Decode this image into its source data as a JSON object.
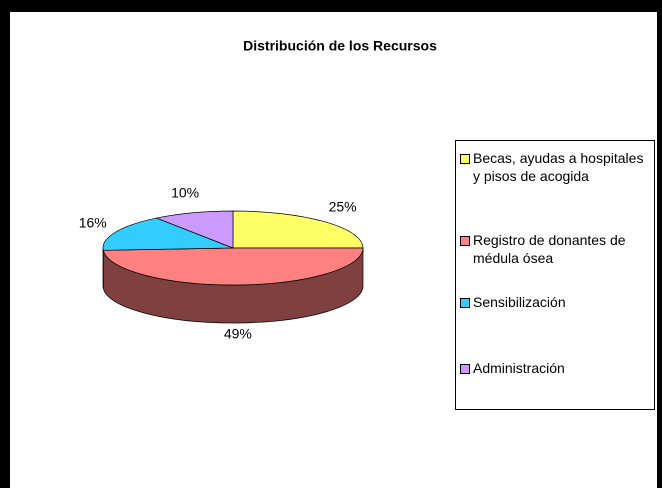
{
  "chart_data": {
    "type": "pie3d",
    "title": "Distribución de los Recursos",
    "categories": [
      "Becas, ayudas a hospitales y pisos de acogida",
      "Registro de donantes de médula ósea",
      "Sensibilización",
      "Administración"
    ],
    "values": [
      25,
      49,
      16,
      10
    ],
    "value_labels": [
      "25%",
      "49%",
      "16%",
      "10%"
    ],
    "colors": [
      "#ffff66",
      "#ff8080",
      "#33ccff",
      "#cc99ff"
    ],
    "legend": "right"
  }
}
